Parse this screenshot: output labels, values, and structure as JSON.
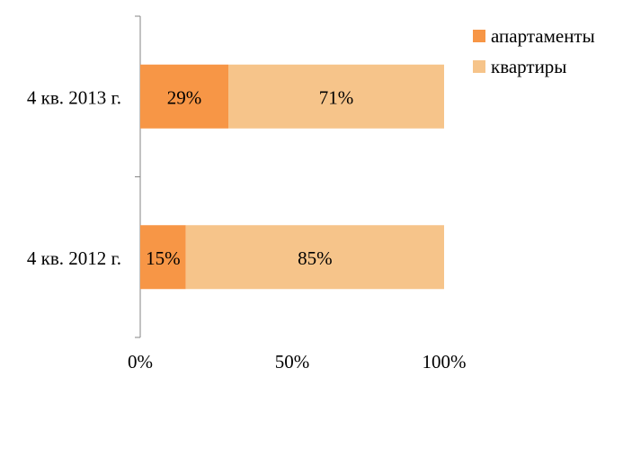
{
  "chart_data": {
    "type": "bar",
    "orientation": "horizontal",
    "stacked": "percent",
    "title": "",
    "xlabel": "",
    "ylabel": "",
    "xlim": [
      0,
      100
    ],
    "x_ticks": [
      "0%",
      "50%",
      "100%"
    ],
    "categories": [
      "4 кв. 2013 г.",
      "4 кв. 2012 г."
    ],
    "series": [
      {
        "name": "апартаменты",
        "color": "#F79646",
        "values": [
          29,
          15
        ],
        "labels": [
          "29%",
          "15%"
        ]
      },
      {
        "name": "квартиры",
        "color": "#F6C48A",
        "values": [
          71,
          85
        ],
        "labels": [
          "71%",
          "85%"
        ]
      }
    ],
    "grid": false,
    "legend_position": "top-right"
  }
}
